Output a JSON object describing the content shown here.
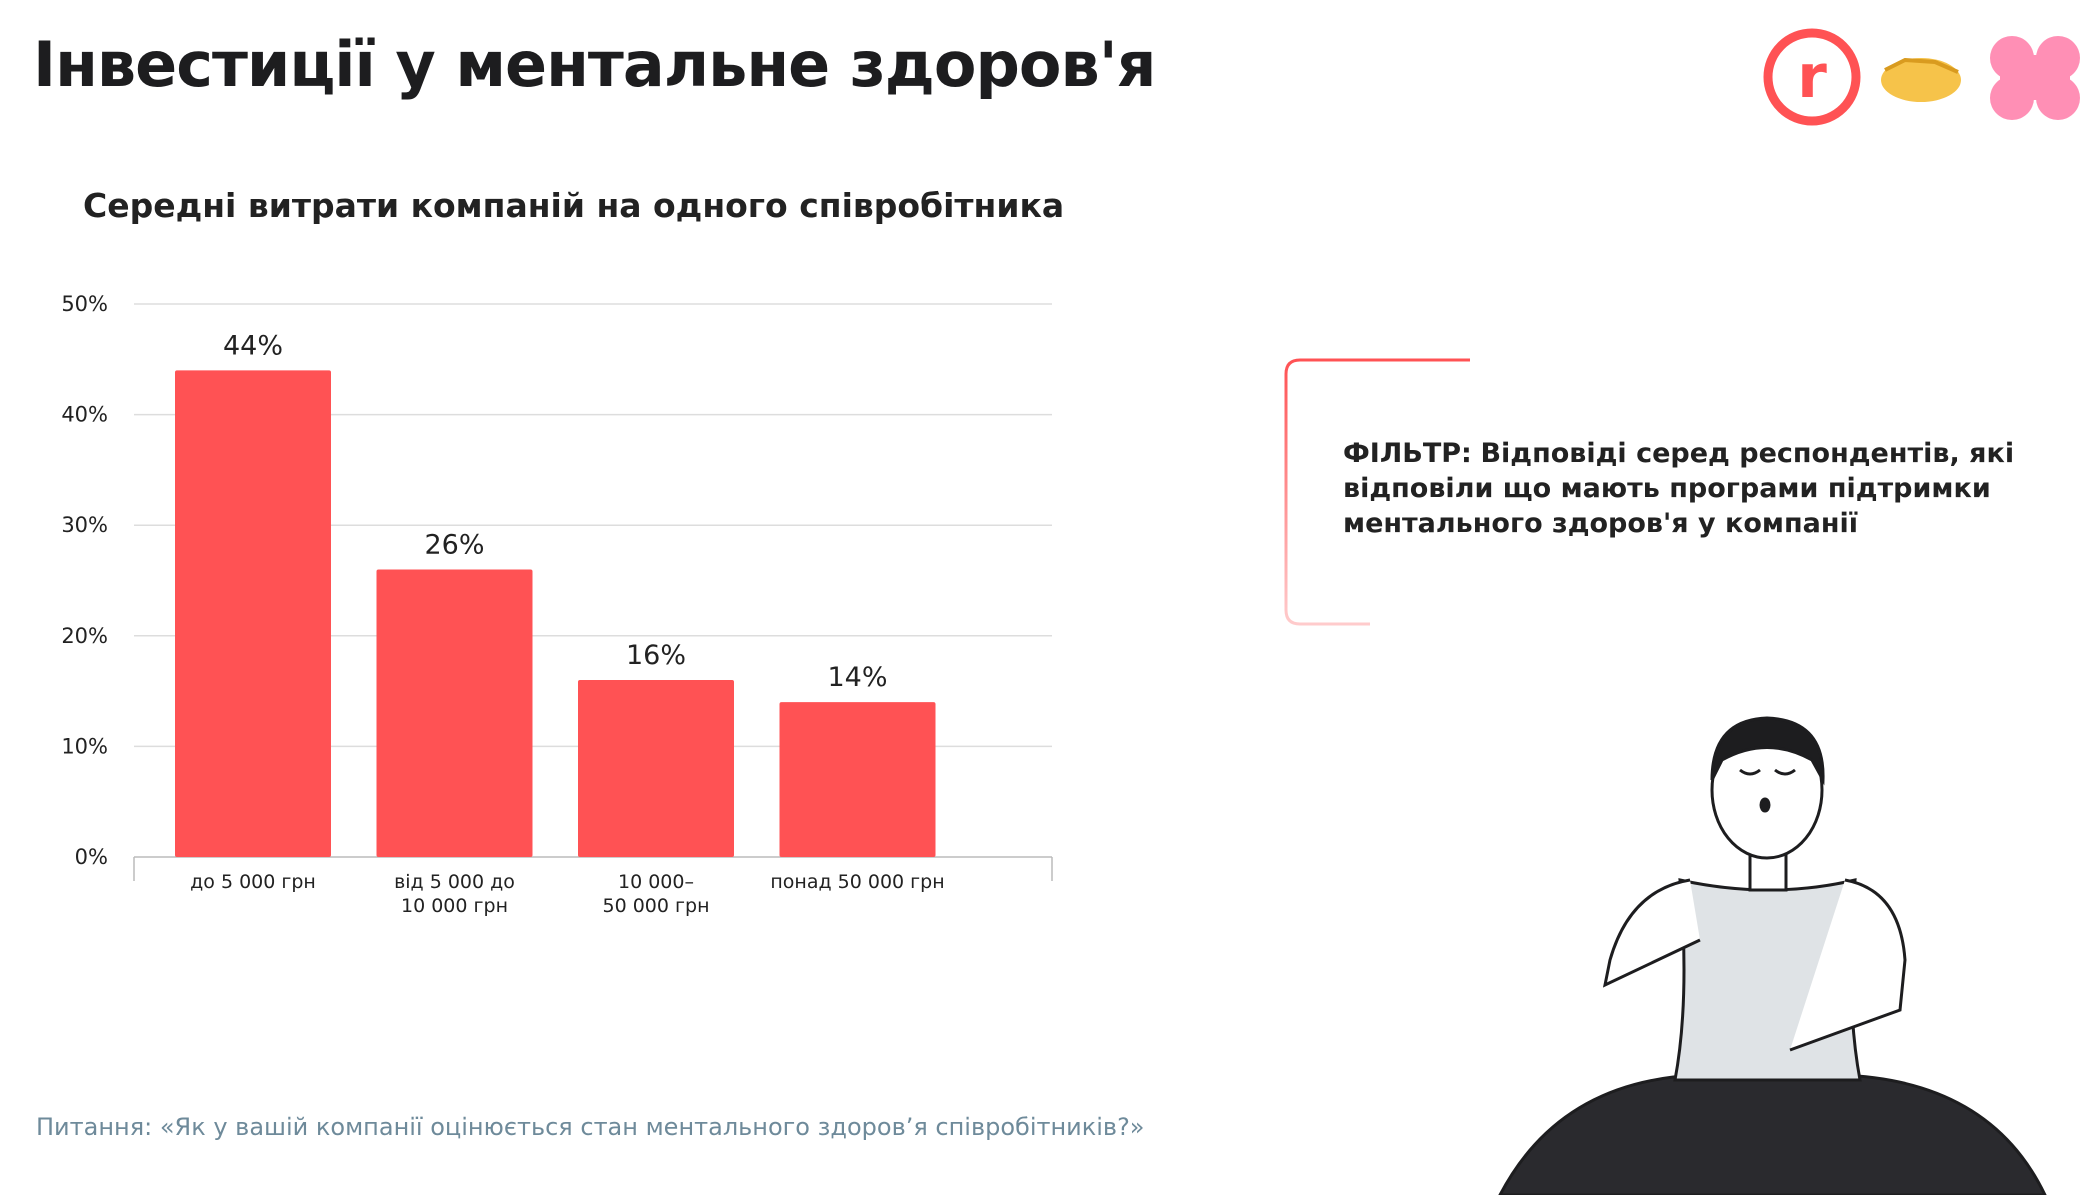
{
  "header": {
    "title": "Інвестиції у ментальне здоров'я"
  },
  "chart_data": {
    "type": "bar",
    "title": "Середні витрати компаній на одного співробітника",
    "categories": [
      "до 5 000 грн",
      "від 5 000 до\n10 000 грн",
      "10 000–\n50 000 грн",
      "понад 50 000 грн"
    ],
    "values": [
      44,
      26,
      16,
      14
    ],
    "value_labels": [
      "44%",
      "26%",
      "16%",
      "14%"
    ],
    "color": "#ff5254",
    "ylim": [
      0,
      50
    ],
    "yticks": [
      {
        "value": 0,
        "label": "0%"
      },
      {
        "value": 10,
        "label": "10%"
      },
      {
        "value": 20,
        "label": "20%"
      },
      {
        "value": 30,
        "label": "30%"
      },
      {
        "value": 40,
        "label": "40%"
      },
      {
        "value": 50,
        "label": "50%"
      }
    ],
    "grid": true
  },
  "filter": {
    "label": "ФІЛЬТР:",
    "text": "Відповіді серед респондентів, які відповіли що мають програми підтримки ментального здоров'я у компанії"
  },
  "footer": {
    "question": "Питання: «Як у вашій компанії оцінюється стан ментального здоров’я співробітників?»"
  }
}
